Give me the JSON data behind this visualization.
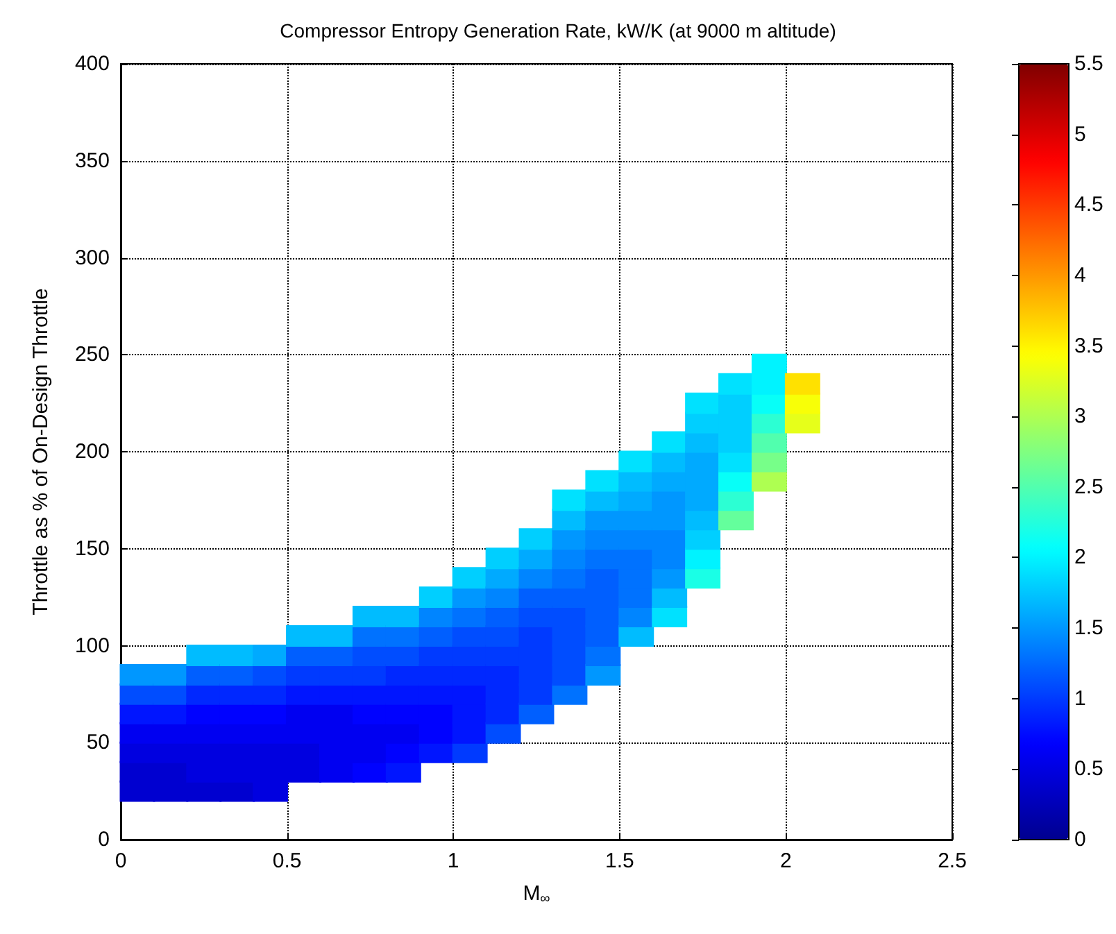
{
  "chart_data": {
    "type": "scatter",
    "title": "Compressor Entropy Generation Rate, kW/K (at 9000 m altitude)",
    "xlabel": "M$_{∞}$",
    "ylabel": "Throttle as % of On-Design Throttle",
    "xlim": [
      0,
      2.5
    ],
    "xticks": [
      0,
      0.5,
      1,
      1.5,
      2,
      2.5
    ],
    "ylim": [
      0,
      400
    ],
    "yticks": [
      0,
      50,
      100,
      150,
      200,
      250,
      300,
      350,
      400
    ],
    "clim": [
      0,
      5.5
    ],
    "cticks": [
      0,
      0.5,
      1,
      1.5,
      2,
      2.5,
      3,
      3.5,
      4,
      4.5,
      5,
      5.5
    ],
    "grid": true,
    "marker": "square",
    "legend": false,
    "x": [
      0.05,
      0.05,
      0.05,
      0.05,
      0.05,
      0.05,
      0.05,
      0.15,
      0.15,
      0.15,
      0.15,
      0.15,
      0.15,
      0.15,
      0.25,
      0.25,
      0.25,
      0.25,
      0.25,
      0.25,
      0.25,
      0.25,
      0.35,
      0.35,
      0.35,
      0.35,
      0.35,
      0.35,
      0.35,
      0.35,
      0.45,
      0.45,
      0.45,
      0.45,
      0.45,
      0.45,
      0.45,
      0.45,
      0.55,
      0.55,
      0.55,
      0.55,
      0.55,
      0.55,
      0.55,
      0.55,
      0.65,
      0.65,
      0.65,
      0.65,
      0.65,
      0.65,
      0.65,
      0.65,
      0.75,
      0.75,
      0.75,
      0.75,
      0.75,
      0.75,
      0.75,
      0.75,
      0.75,
      0.85,
      0.85,
      0.85,
      0.85,
      0.85,
      0.85,
      0.85,
      0.85,
      0.85,
      0.95,
      0.95,
      0.95,
      0.95,
      0.95,
      0.95,
      0.95,
      0.95,
      0.95,
      1.05,
      1.05,
      1.05,
      1.05,
      1.05,
      1.05,
      1.05,
      1.05,
      1.05,
      1.05,
      1.15,
      1.15,
      1.15,
      1.15,
      1.15,
      1.15,
      1.15,
      1.15,
      1.15,
      1.15,
      1.25,
      1.25,
      1.25,
      1.25,
      1.25,
      1.25,
      1.25,
      1.25,
      1.25,
      1.25,
      1.35,
      1.35,
      1.35,
      1.35,
      1.35,
      1.35,
      1.35,
      1.35,
      1.35,
      1.35,
      1.35,
      1.45,
      1.45,
      1.45,
      1.45,
      1.45,
      1.45,
      1.45,
      1.45,
      1.45,
      1.45,
      1.45,
      1.55,
      1.55,
      1.55,
      1.55,
      1.55,
      1.55,
      1.55,
      1.55,
      1.55,
      1.55,
      1.65,
      1.65,
      1.65,
      1.65,
      1.65,
      1.65,
      1.65,
      1.65,
      1.65,
      1.65,
      1.75,
      1.75,
      1.75,
      1.75,
      1.75,
      1.75,
      1.75,
      1.75,
      1.75,
      1.75,
      1.85,
      1.85,
      1.85,
      1.85,
      1.85,
      1.85,
      1.85,
      1.85,
      1.95,
      1.95,
      1.95,
      1.95,
      1.95,
      1.95,
      1.95,
      2.05,
      2.05,
      2.05
    ],
    "values": [
      25,
      35,
      45,
      55,
      65,
      75,
      85,
      25,
      35,
      45,
      55,
      65,
      75,
      85,
      25,
      35,
      45,
      55,
      65,
      75,
      85,
      95,
      25,
      35,
      45,
      55,
      65,
      75,
      85,
      95,
      25,
      35,
      45,
      55,
      65,
      75,
      85,
      95,
      35,
      45,
      55,
      65,
      75,
      85,
      95,
      105,
      35,
      45,
      55,
      65,
      75,
      85,
      95,
      105,
      35,
      45,
      55,
      65,
      75,
      85,
      95,
      105,
      115,
      35,
      45,
      55,
      65,
      75,
      85,
      95,
      105,
      115,
      45,
      55,
      65,
      75,
      85,
      95,
      105,
      115,
      125,
      45,
      55,
      65,
      75,
      85,
      95,
      105,
      115,
      125,
      135,
      55,
      65,
      75,
      85,
      95,
      105,
      115,
      125,
      135,
      145,
      65,
      75,
      85,
      95,
      105,
      115,
      125,
      135,
      145,
      155,
      75,
      85,
      95,
      105,
      115,
      125,
      135,
      145,
      155,
      165,
      175,
      85,
      95,
      105,
      115,
      125,
      135,
      145,
      155,
      165,
      175,
      185,
      105,
      115,
      125,
      135,
      145,
      155,
      165,
      175,
      185,
      195,
      115,
      125,
      135,
      145,
      155,
      165,
      175,
      185,
      195,
      205,
      135,
      145,
      155,
      165,
      175,
      185,
      195,
      205,
      215,
      225,
      165,
      175,
      185,
      195,
      205,
      215,
      225,
      235,
      185,
      195,
      205,
      215,
      225,
      235,
      245,
      215,
      225,
      235
    ],
    "cvalues": [
      0.4,
      0.4,
      0.5,
      0.6,
      0.8,
      1.1,
      1.5,
      0.4,
      0.4,
      0.5,
      0.6,
      0.8,
      1.1,
      1.5,
      0.4,
      0.5,
      0.5,
      0.6,
      0.7,
      0.9,
      1.2,
      1.7,
      0.4,
      0.5,
      0.5,
      0.6,
      0.7,
      0.9,
      1.2,
      1.7,
      0.5,
      0.5,
      0.5,
      0.6,
      0.7,
      0.9,
      1.1,
      1.6,
      0.5,
      0.5,
      0.6,
      0.6,
      0.8,
      1.0,
      1.2,
      1.7,
      0.6,
      0.6,
      0.6,
      0.6,
      0.8,
      1.0,
      1.2,
      1.7,
      0.7,
      0.6,
      0.6,
      0.7,
      0.8,
      1.0,
      1.1,
      1.3,
      1.7,
      0.8,
      0.7,
      0.6,
      0.7,
      0.8,
      0.9,
      1.1,
      1.3,
      1.7,
      0.8,
      0.7,
      0.7,
      0.8,
      0.9,
      1.0,
      1.2,
      1.4,
      1.8,
      1.0,
      0.8,
      0.8,
      0.8,
      0.9,
      1.0,
      1.1,
      1.3,
      1.5,
      1.8,
      1.1,
      0.9,
      0.9,
      0.9,
      1.0,
      1.1,
      1.2,
      1.4,
      1.6,
      1.8,
      1.2,
      1.0,
      1.0,
      1.0,
      1.0,
      1.1,
      1.2,
      1.4,
      1.6,
      1.8,
      1.3,
      1.1,
      1.1,
      1.1,
      1.1,
      1.2,
      1.3,
      1.4,
      1.5,
      1.7,
      1.9,
      1.5,
      1.3,
      1.2,
      1.2,
      1.2,
      1.2,
      1.3,
      1.4,
      1.5,
      1.7,
      1.9,
      1.7,
      1.4,
      1.3,
      1.3,
      1.3,
      1.4,
      1.5,
      1.6,
      1.7,
      1.9,
      1.9,
      1.7,
      1.5,
      1.4,
      1.4,
      1.5,
      1.5,
      1.6,
      1.7,
      1.9,
      2.2,
      2.0,
      1.8,
      1.7,
      1.6,
      1.6,
      1.6,
      1.7,
      1.8,
      1.9,
      2.6,
      2.3,
      2.1,
      1.9,
      1.8,
      1.8,
      1.8,
      1.9,
      3.0,
      2.7,
      2.5,
      2.3,
      2.1,
      2.0,
      2.0,
      3.3,
      3.4,
      3.6
    ]
  }
}
